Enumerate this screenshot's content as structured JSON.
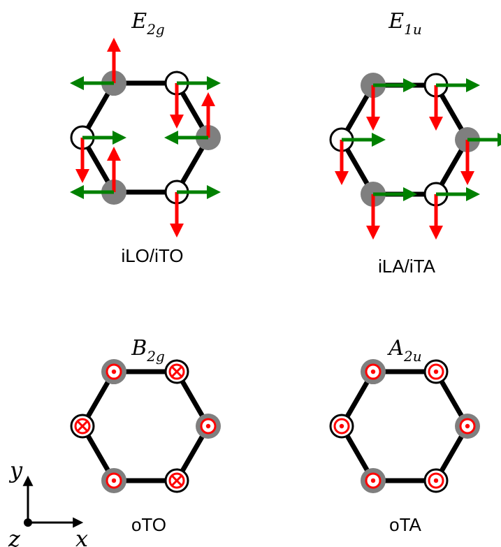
{
  "panels": [
    {
      "symbol": "E",
      "subscript": "2g",
      "caption": "iLO/iTO",
      "atoms": [
        {
          "type": "filled",
          "vertical": "up",
          "horizontal": "left"
        },
        {
          "type": "open",
          "vertical": "down",
          "horizontal": "right"
        },
        {
          "type": "filled",
          "vertical": "up",
          "horizontal": "left"
        },
        {
          "type": "open",
          "vertical": "down",
          "horizontal": "right"
        },
        {
          "type": "filled",
          "vertical": "up",
          "horizontal": "left"
        },
        {
          "type": "open",
          "vertical": "down",
          "horizontal": "right"
        }
      ]
    },
    {
      "symbol": "E",
      "subscript": "1u",
      "caption": "iLA/iTA",
      "atoms": [
        {
          "type": "filled",
          "vertical": "down",
          "horizontal": "right"
        },
        {
          "type": "open",
          "vertical": "down",
          "horizontal": "right"
        },
        {
          "type": "filled",
          "vertical": "down",
          "horizontal": "right"
        },
        {
          "type": "open",
          "vertical": "down",
          "horizontal": "right"
        },
        {
          "type": "filled",
          "vertical": "down",
          "horizontal": "right"
        },
        {
          "type": "open",
          "vertical": "down",
          "horizontal": "right"
        }
      ]
    },
    {
      "symbol": "B",
      "subscript": "2g",
      "caption": "oTO",
      "atoms": [
        {
          "type": "filled",
          "out_of_plane": "out"
        },
        {
          "type": "open",
          "out_of_plane": "in"
        },
        {
          "type": "filled",
          "out_of_plane": "out"
        },
        {
          "type": "open",
          "out_of_plane": "in"
        },
        {
          "type": "filled",
          "out_of_plane": "out"
        },
        {
          "type": "open",
          "out_of_plane": "in"
        }
      ]
    },
    {
      "symbol": "A",
      "subscript": "2u",
      "caption": "oTA",
      "atoms": [
        {
          "type": "filled",
          "out_of_plane": "out"
        },
        {
          "type": "open",
          "out_of_plane": "out"
        },
        {
          "type": "filled",
          "out_of_plane": "out"
        },
        {
          "type": "open",
          "out_of_plane": "out"
        },
        {
          "type": "filled",
          "out_of_plane": "out"
        },
        {
          "type": "open",
          "out_of_plane": "out"
        }
      ]
    }
  ],
  "axes": {
    "x": "x",
    "y": "y",
    "z": "z"
  },
  "colors": {
    "bond": "#000000",
    "filled_atom": "#7f7f7f",
    "open_atom": "#ffffff",
    "vertical_arrow": "#ff0000",
    "horizontal_arrow": "#008000",
    "out_of_plane_marker": "#ff0000"
  }
}
